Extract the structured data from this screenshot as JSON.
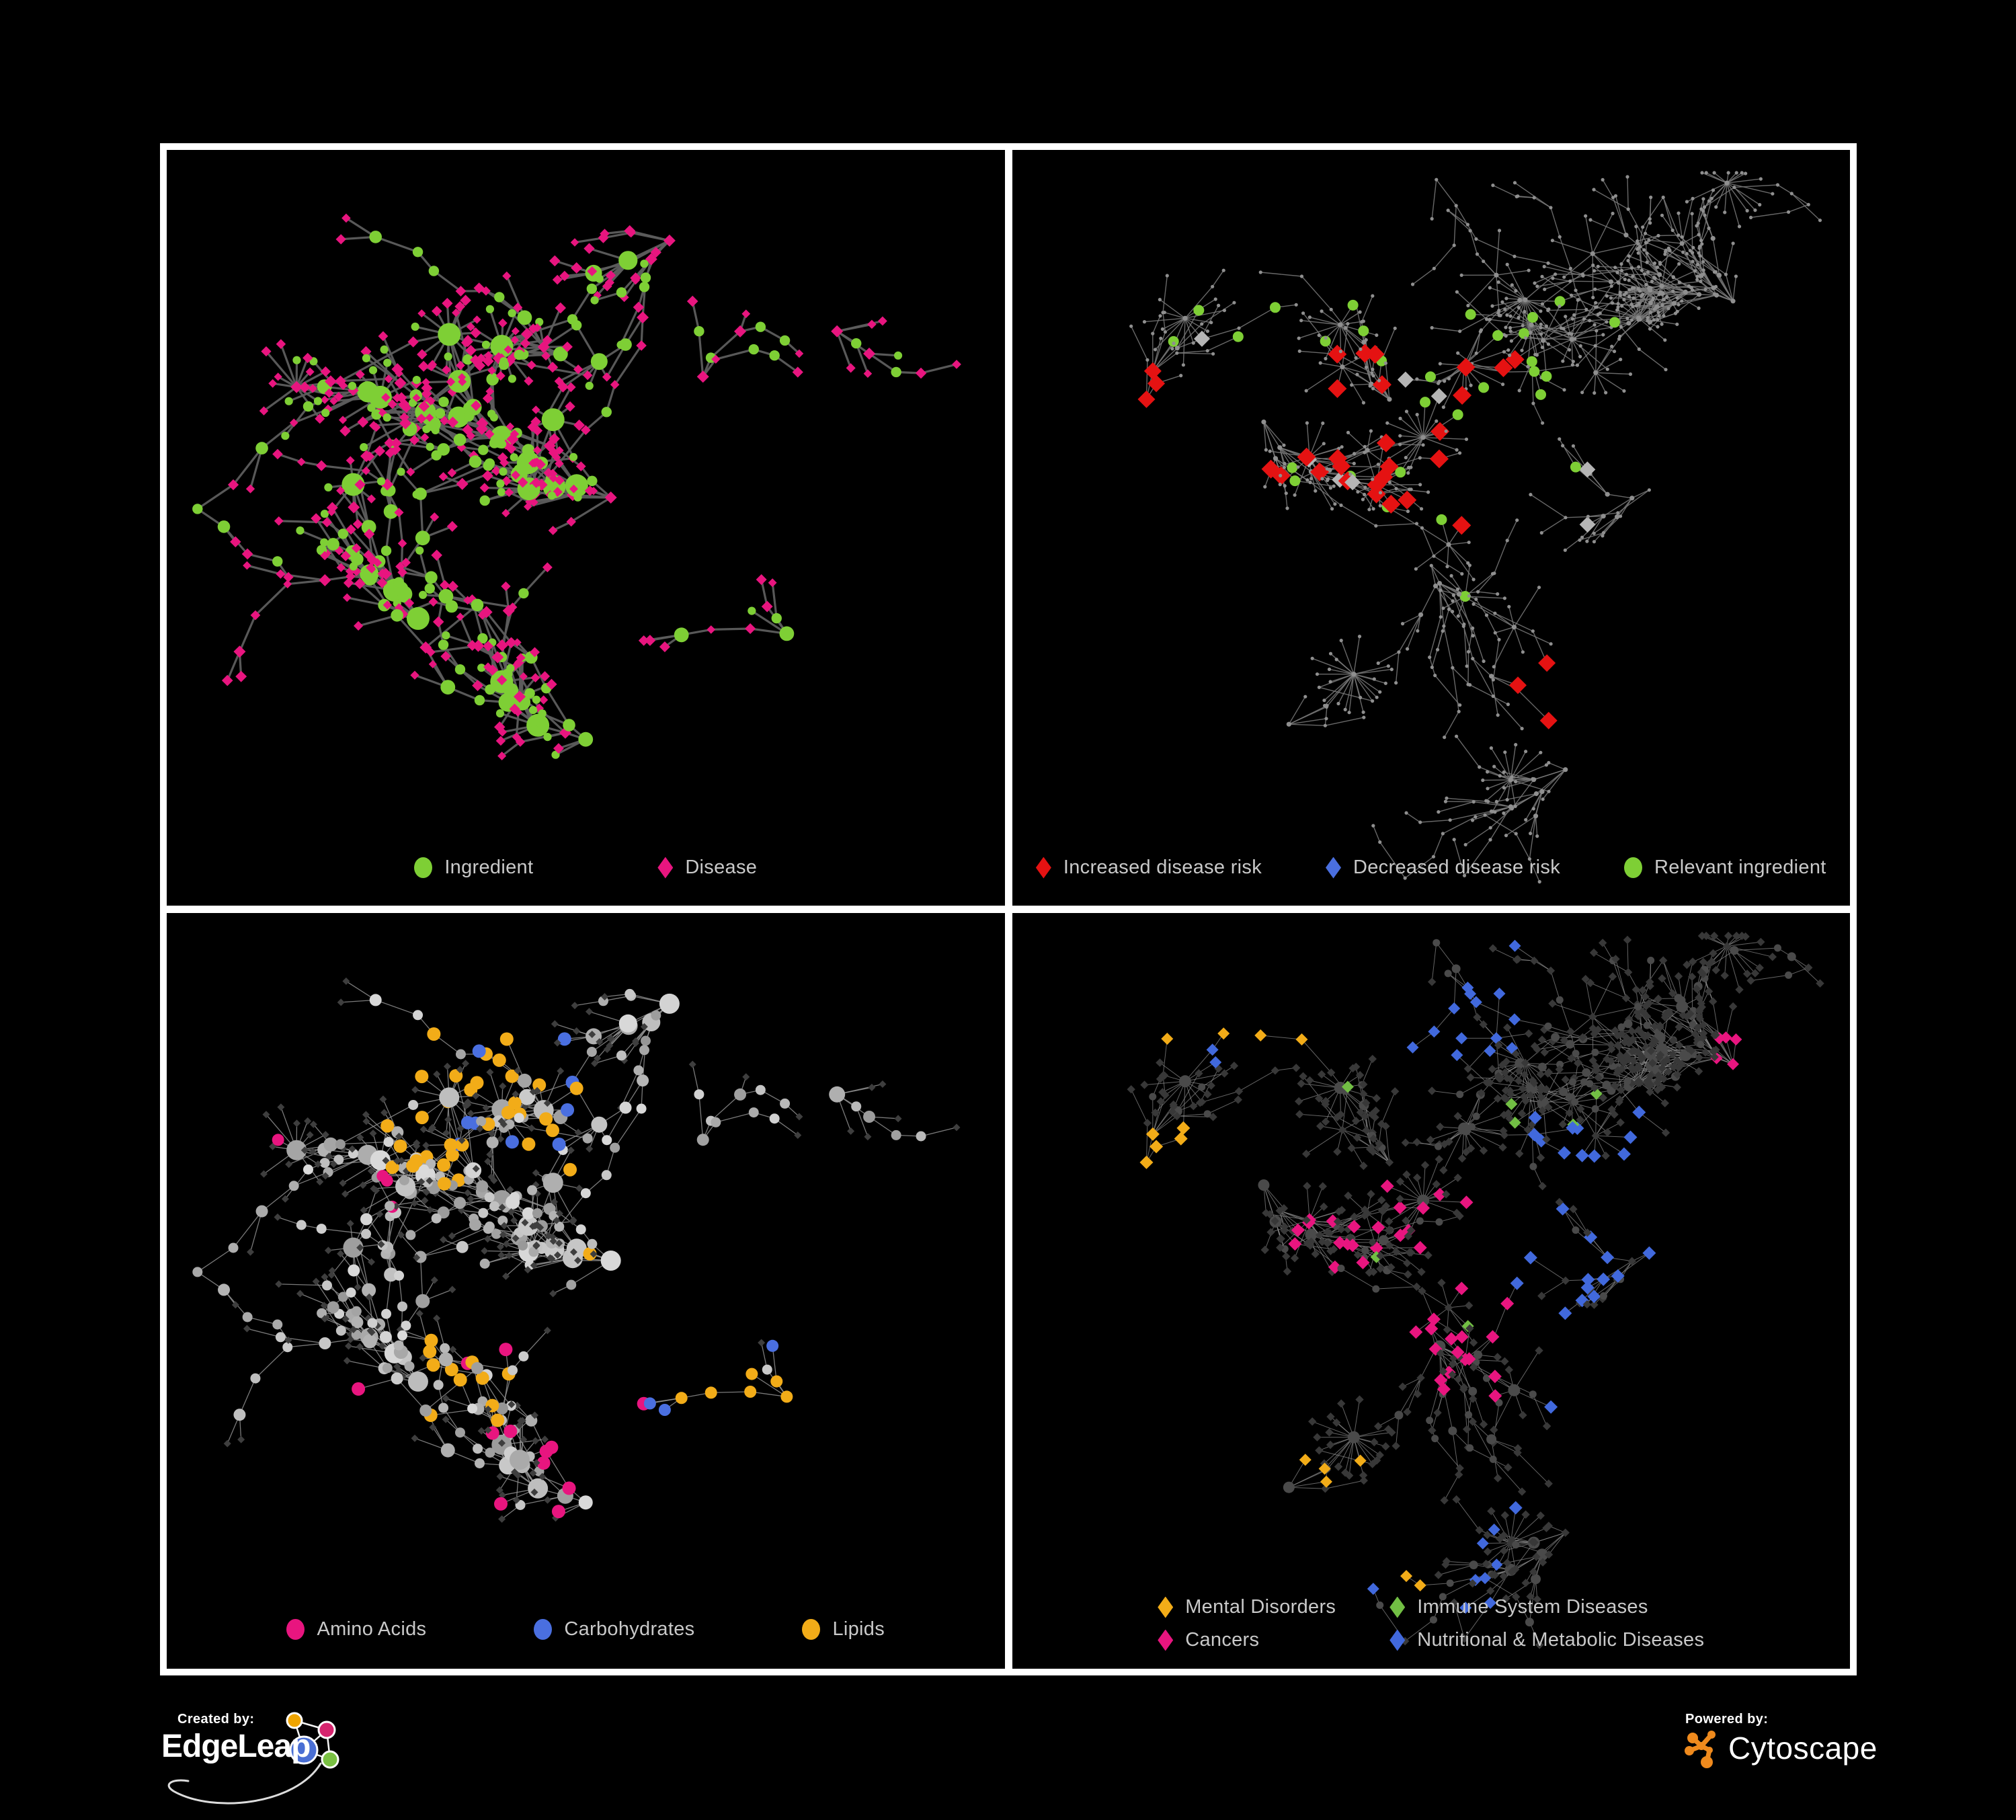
{
  "figure": {
    "background": "#000000",
    "frame_color": "#ffffff",
    "legend_text_color": "#c9c9c9"
  },
  "panels": [
    {
      "name": "ingredient-disease-network",
      "legend": [
        [
          {
            "label": "Ingredient",
            "shape": "circle",
            "color": "#7ecf35"
          },
          {
            "label": "Disease",
            "shape": "diamond",
            "color": "#e8157f"
          }
        ]
      ],
      "net": {
        "seed": 11,
        "n": 440,
        "clusters": [
          [
            0.4,
            0.38
          ],
          [
            0.53,
            0.46
          ],
          [
            0.3,
            0.62
          ],
          [
            0.47,
            0.27
          ],
          [
            0.64,
            0.3
          ],
          [
            0.24,
            0.32
          ],
          [
            0.8,
            0.24
          ],
          [
            0.5,
            0.78
          ],
          [
            0.74,
            0.64
          ],
          [
            0.6,
            0.12
          ]
        ],
        "hubBias": 0.3,
        "step": [
          26,
          46
        ],
        "fans": 13,
        "fanLeaves": [
          6,
          14
        ],
        "cross": 90,
        "crossDist": 130,
        "crossRegion": [
          0.18,
          0.65,
          0.22,
          0.68
        ],
        "edge": {
          "color": "#5d5d5d",
          "width": 3.2,
          "opacity": 0.95
        },
        "style": "bipartite",
        "palette": {
          "green": "#7ecf35",
          "pink": "#e8157f"
        },
        "marks": []
      }
    },
    {
      "name": "disease-risk-network",
      "legend": [
        [
          {
            "label": "Increased disease risk",
            "shape": "diamond",
            "color": "#e51212"
          },
          {
            "label": "Decreased disease risk",
            "shape": "diamond",
            "color": "#4a6fe0"
          },
          {
            "label": "Relevant ingredient",
            "shape": "circle",
            "color": "#7ecf35"
          }
        ]
      ],
      "net": {
        "seed": 22,
        "n": 560,
        "clusters": [
          [
            0.45,
            0.33
          ],
          [
            0.3,
            0.36
          ],
          [
            0.62,
            0.28
          ],
          [
            0.5,
            0.55
          ],
          [
            0.76,
            0.45
          ],
          [
            0.33,
            0.76
          ],
          [
            0.66,
            0.82
          ],
          [
            0.86,
            0.2
          ],
          [
            0.16,
            0.33
          ],
          [
            0.52,
            0.08
          ]
        ],
        "hubBias": 0.26,
        "step": [
          24,
          42
        ],
        "fans": 26,
        "fanLeaves": [
          5,
          12
        ],
        "cross": 80,
        "crossDist": 120,
        "crossRegion": [
          0.1,
          0.85,
          0.1,
          0.85
        ],
        "edge": {
          "color": "#7a7a7a",
          "width": 1.4,
          "opacity": 0.85
        },
        "style": "plain",
        "palette": {
          "base": "#8f8f8f"
        },
        "marks": [
          {
            "shape": "diamond",
            "color": "#e51212",
            "size": 14,
            "count": 26,
            "region": [
              0.3,
              0.6,
              0.26,
              0.52
            ]
          },
          {
            "shape": "diamond",
            "color": "#e51212",
            "size": 13,
            "count": 4,
            "region": [
              0.05,
              0.18,
              0.28,
              0.45
            ]
          },
          {
            "shape": "diamond",
            "color": "#e51212",
            "size": 13,
            "count": 3,
            "region": [
              0.6,
              0.8,
              0.58,
              0.76
            ]
          },
          {
            "shape": "diamond",
            "color": "#4a6fe0",
            "size": 13,
            "count": 7,
            "region": [
              0.08,
              0.26,
              0.3,
              0.56
            ]
          },
          {
            "shape": "diamond",
            "color": "#4a6fe0",
            "size": 12,
            "count": 2,
            "region": [
              0.82,
              0.97,
              0.2,
              0.3
            ]
          },
          {
            "shape": "diamond",
            "color": "#b5b5b5",
            "size": 12,
            "count": 8,
            "region": [
              0.1,
              0.72,
              0.24,
              0.6
            ]
          },
          {
            "shape": "circle",
            "color": "#7ecf35",
            "size": 8,
            "count": 30,
            "region": [
              0.1,
              0.72,
              0.18,
              0.6
            ]
          },
          {
            "shape": "circle",
            "color": "#7ecf35",
            "size": 8,
            "count": 5,
            "region": [
              0.72,
              0.95,
              0.5,
              0.78
            ]
          }
        ]
      }
    },
    {
      "name": "ingredient-class-network",
      "legend": [
        [
          {
            "label": "Amino Acids",
            "shape": "circle",
            "color": "#e8157f"
          },
          {
            "label": "Carbohydrates",
            "shape": "circle",
            "color": "#4a6fe0"
          },
          {
            "label": "Lipids",
            "shape": "circle",
            "color": "#f2ac18"
          }
        ]
      ],
      "net": {
        "seed": 11,
        "n": 440,
        "clusters": [
          [
            0.4,
            0.38
          ],
          [
            0.53,
            0.46
          ],
          [
            0.3,
            0.62
          ],
          [
            0.47,
            0.27
          ],
          [
            0.64,
            0.3
          ],
          [
            0.24,
            0.32
          ],
          [
            0.8,
            0.24
          ],
          [
            0.5,
            0.78
          ],
          [
            0.74,
            0.64
          ],
          [
            0.6,
            0.12
          ]
        ],
        "hubBias": 0.3,
        "step": [
          26,
          46
        ],
        "fans": 13,
        "fanLeaves": [
          6,
          14
        ],
        "cross": 90,
        "crossDist": 130,
        "crossRegion": [
          0.18,
          0.65,
          0.22,
          0.68
        ],
        "edge": {
          "color": "#989898",
          "width": 1.3,
          "opacity": 0.8
        },
        "style": "classes",
        "palette": {
          "leaf": "#3e3e3e",
          "node": "#9a9a9a"
        },
        "marks": [
          {
            "shape": "circle",
            "color": "#f2ac18",
            "size": 10,
            "count": 34,
            "region": [
              0.26,
              0.5,
              0.14,
              0.36
            ]
          },
          {
            "shape": "circle",
            "color": "#f2ac18",
            "size": 10,
            "count": 12,
            "region": [
              0.3,
              0.6,
              0.45,
              0.68
            ]
          },
          {
            "shape": "circle",
            "color": "#f2ac18",
            "size": 9,
            "count": 6,
            "region": [
              0.6,
              0.85,
              0.45,
              0.75
            ]
          },
          {
            "shape": "circle",
            "color": "#4a6fe0",
            "size": 10,
            "count": 9,
            "region": [
              0.28,
              0.5,
              0.12,
              0.35
            ]
          },
          {
            "shape": "circle",
            "color": "#4a6fe0",
            "size": 9,
            "count": 3,
            "region": [
              0.55,
              0.8,
              0.55,
              0.75
            ]
          },
          {
            "shape": "circle",
            "color": "#e8157f",
            "size": 10,
            "count": 7,
            "region": [
              0.05,
              0.45,
              0.55,
              0.95
            ]
          },
          {
            "shape": "circle",
            "color": "#e8157f",
            "size": 10,
            "count": 5,
            "region": [
              0.45,
              0.9,
              0.55,
              0.85
            ]
          },
          {
            "shape": "circle",
            "color": "#e8157f",
            "size": 9,
            "count": 4,
            "region": [
              0.02,
              0.3,
              0.15,
              0.45
            ]
          }
        ]
      }
    },
    {
      "name": "disease-class-network",
      "legend": [
        [
          {
            "label": "Mental Disorders",
            "shape": "diamond",
            "color": "#f2ac18"
          },
          {
            "label": "Immune System Diseases",
            "shape": "diamond",
            "color": "#72bf44"
          }
        ],
        [
          {
            "label": "Cancers",
            "shape": "diamond",
            "color": "#e8157f"
          },
          {
            "label": "Nutritional & Metabolic Diseases",
            "shape": "diamond",
            "color": "#4169dd"
          }
        ]
      ],
      "net": {
        "seed": 22,
        "n": 560,
        "clusters": [
          [
            0.45,
            0.33
          ],
          [
            0.3,
            0.36
          ],
          [
            0.62,
            0.28
          ],
          [
            0.5,
            0.55
          ],
          [
            0.76,
            0.45
          ],
          [
            0.33,
            0.76
          ],
          [
            0.66,
            0.82
          ],
          [
            0.86,
            0.2
          ],
          [
            0.16,
            0.33
          ],
          [
            0.52,
            0.08
          ]
        ],
        "hubBias": 0.26,
        "step": [
          24,
          42
        ],
        "fans": 26,
        "fanLeaves": [
          5,
          12
        ],
        "cross": 80,
        "crossDist": 120,
        "crossRegion": [
          0.1,
          0.85,
          0.1,
          0.85
        ],
        "edge": {
          "color": "#8f8f8f",
          "width": 1.0,
          "opacity": 0.7
        },
        "style": "dark",
        "palette": {
          "leaf": "#383838",
          "node": "#4a4a4a"
        },
        "marks": [
          {
            "shape": "diamond",
            "color": "#f2ac18",
            "size": 10,
            "count": 62,
            "region": [
              0.03,
              0.28,
              0.28,
              0.62
            ]
          },
          {
            "shape": "diamond",
            "color": "#f2ac18",
            "size": 9,
            "count": 6,
            "region": [
              0.25,
              0.5,
              0.72,
              0.95
            ]
          },
          {
            "shape": "diamond",
            "color": "#f2ac18",
            "size": 9,
            "count": 4,
            "region": [
              0.1,
              0.35,
              0.03,
              0.18
            ]
          },
          {
            "shape": "diamond",
            "color": "#e8157f",
            "size": 10,
            "count": 38,
            "region": [
              0.33,
              0.62,
              0.35,
              0.66
            ]
          },
          {
            "shape": "diamond",
            "color": "#e8157f",
            "size": 9,
            "count": 6,
            "region": [
              0.84,
              0.98,
              0.16,
              0.3
            ]
          },
          {
            "shape": "diamond",
            "color": "#e8157f",
            "size": 9,
            "count": 5,
            "region": [
              0.05,
              0.3,
              0.7,
              0.95
            ]
          },
          {
            "shape": "diamond",
            "color": "#4169dd",
            "size": 10,
            "count": 26,
            "region": [
              0.6,
              0.97,
              0.26,
              0.8
            ]
          },
          {
            "shape": "diamond",
            "color": "#4169dd",
            "size": 9,
            "count": 16,
            "region": [
              0.18,
              0.6,
              0.02,
              0.2
            ]
          },
          {
            "shape": "diamond",
            "color": "#4169dd",
            "size": 9,
            "count": 8,
            "region": [
              0.28,
              0.58,
              0.78,
              0.97
            ]
          },
          {
            "shape": "diamond",
            "color": "#72bf44",
            "size": 9,
            "count": 7,
            "region": [
              0.3,
              0.7,
              0.22,
              0.6
            ]
          }
        ]
      }
    }
  ],
  "footer": {
    "created_by": "Created by:",
    "edgeleap_brand": "EdgeLeap",
    "powered_by": "Powered by:",
    "cytoscape_brand": "Cytoscape"
  },
  "brand_colors": {
    "edgeleap_blue": "#4a6fd4",
    "edgeleap_orange": "#f0a500",
    "edgeleap_pink": "#d6246e",
    "edgeleap_green": "#7ac143",
    "edgeleap_line": "#f2f2f2",
    "cytoscape_orange": "#ef8a1d"
  }
}
